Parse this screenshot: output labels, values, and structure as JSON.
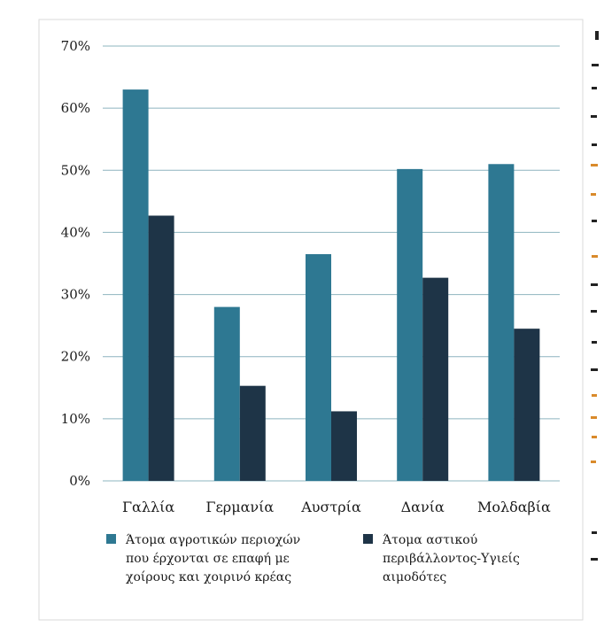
{
  "chart_data": {
    "type": "bar",
    "title": "",
    "xlabel": "",
    "ylabel": "",
    "ylim": [
      0,
      70
    ],
    "yticks": [
      0,
      10,
      20,
      30,
      40,
      50,
      60,
      70
    ],
    "ytick_labels": [
      "0%",
      "10%",
      "20%",
      "30%",
      "40%",
      "50%",
      "60%",
      "70%"
    ],
    "grid": true,
    "legend_position": "bottom",
    "categories": [
      "Γαλλία",
      "Γερμανία",
      "Αυστρία",
      "Δανία",
      "Μολδαβία"
    ],
    "series": [
      {
        "name": "Άτομα αγροτικών περιοχών που έρχονται σε επαφή με χοίρους και χοιρινό κρέας",
        "legend_lines": [
          "Άτομα αγροτικών περιοχών",
          "που έρχονται σε επαφή με",
          "χοίρους και χοιρινό κρέας"
        ],
        "color": "#2e7892",
        "values": [
          63,
          28,
          36.5,
          50.2,
          51
        ]
      },
      {
        "name": "Άτομα αστικού περιβάλλοντος-Υγιείς αιμοδότες",
        "legend_lines": [
          "Άτομα αστικού",
          "περιβάλλοντος-Υγιείς",
          "αιμοδότες"
        ],
        "color": "#1e3447",
        "values": [
          42.7,
          15.3,
          11.2,
          32.7,
          24.5
        ]
      }
    ]
  },
  "colors": {
    "grid": "#8eb4bf",
    "background": "#ffffff"
  }
}
